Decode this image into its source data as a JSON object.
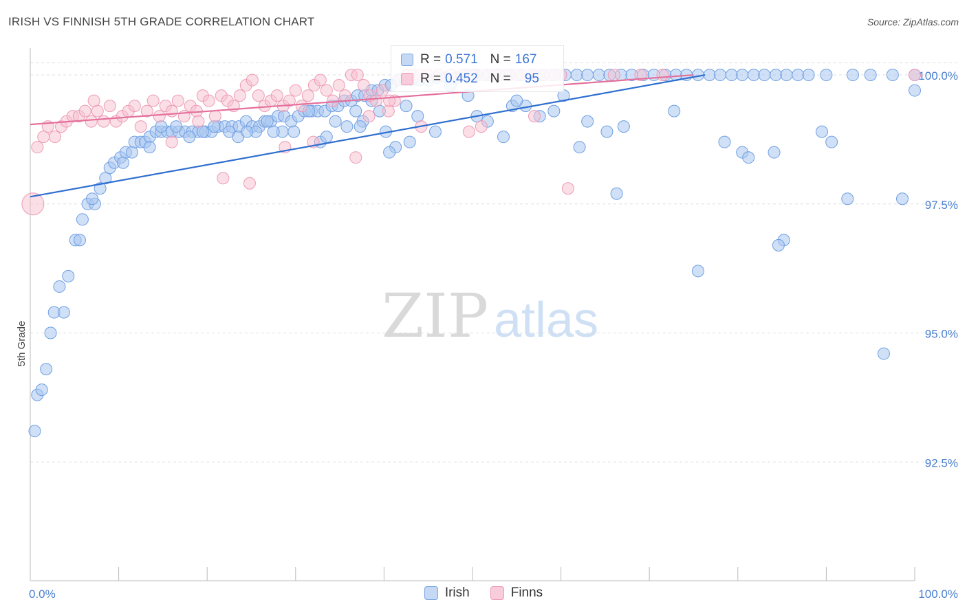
{
  "title": "IRISH VS FINNISH 5TH GRADE CORRELATION CHART",
  "source": "Source: ZipAtlas.com",
  "watermark": {
    "zip": "ZIP",
    "atlas": "atlas"
  },
  "colors": {
    "irish_fill": "#a9c6f0",
    "irish_stroke": "#6f9fe2",
    "irish_line": "#2f6fcf",
    "finns_fill": "#f6bfd0",
    "finns_stroke": "#ee9ab6",
    "finns_line": "#e4709b",
    "tick": "#4a7fd0",
    "grid": "#dddddd"
  },
  "legend": {
    "irish": {
      "r_label": "R =",
      "r_value": "0.571",
      "n_label": "N =",
      "n_value": "167"
    },
    "finns": {
      "r_label": "R =",
      "r_value": "0.452",
      "n_label": "N =",
      "n_value": "95"
    }
  },
  "bottom_legend": [
    "Irish",
    "Finns"
  ],
  "chart_data": {
    "type": "scatter",
    "title": "IRISH VS FINNISH 5TH GRADE CORRELATION CHART",
    "xlabel": "",
    "ylabel": "5th Grade",
    "xlim": [
      0,
      100
    ],
    "ylim": [
      90.2,
      100.4
    ],
    "x_tick_labels": [
      "0.0%",
      "100.0%"
    ],
    "y_ticks": [
      92.5,
      95.0,
      97.5,
      100.0
    ],
    "y_tick_labels": [
      "92.5%",
      "95.0%",
      "97.5%",
      "100.0%"
    ],
    "series": [
      {
        "name": "Irish",
        "trend": {
          "x": [
            0,
            76.3
          ],
          "y": [
            97.64,
            100.0
          ]
        },
        "points": [
          [
            0.5,
            93.1
          ],
          [
            0.8,
            93.8
          ],
          [
            1.3,
            93.9
          ],
          [
            1.8,
            94.3
          ],
          [
            2.3,
            95.0
          ],
          [
            2.7,
            95.4
          ],
          [
            3.8,
            95.4
          ],
          [
            3.3,
            95.9
          ],
          [
            4.3,
            96.1
          ],
          [
            5.1,
            96.8
          ],
          [
            5.6,
            96.8
          ],
          [
            5.9,
            97.2
          ],
          [
            6.5,
            97.5
          ],
          [
            7.3,
            97.5
          ],
          [
            7.0,
            97.6
          ],
          [
            7.9,
            97.8
          ],
          [
            8.5,
            98.0
          ],
          [
            9.0,
            98.2
          ],
          [
            9.5,
            98.3
          ],
          [
            10.2,
            98.4
          ],
          [
            10.5,
            98.3
          ],
          [
            10.8,
            98.5
          ],
          [
            11.5,
            98.5
          ],
          [
            11.8,
            98.7
          ],
          [
            12.5,
            98.7
          ],
          [
            13.0,
            98.7
          ],
          [
            13.5,
            98.8
          ],
          [
            14.2,
            98.9
          ],
          [
            14.8,
            98.9
          ],
          [
            15.5,
            98.9
          ],
          [
            16.0,
            98.9
          ],
          [
            16.8,
            98.9
          ],
          [
            17.5,
            98.9
          ],
          [
            18.3,
            98.9
          ],
          [
            19.0,
            98.9
          ],
          [
            19.8,
            98.9
          ],
          [
            20.5,
            98.9
          ],
          [
            21.2,
            99.0
          ],
          [
            22.0,
            99.0
          ],
          [
            22.8,
            99.0
          ],
          [
            23.6,
            99.0
          ],
          [
            24.4,
            99.1
          ],
          [
            25.1,
            99.0
          ],
          [
            25.9,
            99.0
          ],
          [
            26.5,
            99.1
          ],
          [
            27.2,
            99.1
          ],
          [
            28.0,
            99.2
          ],
          [
            28.7,
            99.2
          ],
          [
            29.5,
            99.1
          ],
          [
            30.3,
            99.2
          ],
          [
            31.0,
            99.3
          ],
          [
            31.8,
            99.3
          ],
          [
            32.5,
            99.3
          ],
          [
            33.3,
            99.3
          ],
          [
            34.1,
            99.4
          ],
          [
            34.8,
            99.4
          ],
          [
            35.5,
            99.5
          ],
          [
            36.3,
            99.5
          ],
          [
            37.0,
            99.6
          ],
          [
            37.8,
            99.6
          ],
          [
            38.6,
            99.7
          ],
          [
            39.3,
            99.7
          ],
          [
            40.1,
            99.8
          ],
          [
            40.8,
            99.8
          ],
          [
            41.6,
            99.9
          ],
          [
            42.4,
            99.9
          ],
          [
            43.1,
            99.9
          ],
          [
            44.0,
            99.9
          ],
          [
            45.0,
            99.9
          ],
          [
            46.0,
            99.95
          ],
          [
            47.0,
            99.95
          ],
          [
            48.2,
            99.95
          ],
          [
            49.3,
            100
          ],
          [
            50.5,
            100
          ],
          [
            51.8,
            100
          ],
          [
            53.0,
            100
          ],
          [
            54.2,
            100
          ],
          [
            55.5,
            100
          ],
          [
            56.8,
            100
          ],
          [
            58.0,
            100
          ],
          [
            59.3,
            100
          ],
          [
            60.5,
            100
          ],
          [
            61.8,
            100
          ],
          [
            63.0,
            100
          ],
          [
            64.3,
            100
          ],
          [
            65.5,
            100
          ],
          [
            66.8,
            100
          ],
          [
            68.0,
            100
          ],
          [
            69.3,
            100
          ],
          [
            70.5,
            100
          ],
          [
            71.8,
            100
          ],
          [
            73.0,
            100
          ],
          [
            74.2,
            100
          ],
          [
            75.5,
            100
          ],
          [
            76.8,
            100
          ],
          [
            78.0,
            100
          ],
          [
            79.3,
            100
          ],
          [
            80.5,
            100
          ],
          [
            81.8,
            100
          ],
          [
            83.0,
            100
          ],
          [
            84.3,
            100
          ],
          [
            85.5,
            100
          ],
          [
            86.8,
            100
          ],
          [
            88.0,
            100
          ],
          [
            90.0,
            100
          ],
          [
            93.0,
            100
          ],
          [
            95.0,
            100
          ],
          [
            97.5,
            100
          ],
          [
            100.0,
            100
          ],
          [
            14.8,
            99.0
          ],
          [
            16.5,
            99.0
          ],
          [
            19.5,
            98.9
          ],
          [
            22.5,
            98.9
          ],
          [
            23.5,
            98.8
          ],
          [
            25.5,
            98.9
          ],
          [
            26.8,
            99.1
          ],
          [
            28.5,
            98.9
          ],
          [
            29.8,
            98.9
          ],
          [
            31.5,
            99.3
          ],
          [
            32.8,
            98.7
          ],
          [
            34.5,
            99.1
          ],
          [
            35.8,
            99.0
          ],
          [
            36.8,
            99.3
          ],
          [
            37.6,
            99.1
          ],
          [
            38.6,
            99.5
          ],
          [
            39.5,
            99.3
          ],
          [
            40.2,
            98.9
          ],
          [
            41.3,
            98.6
          ],
          [
            42.5,
            99.4
          ],
          [
            43.8,
            99.2
          ],
          [
            45.8,
            98.9
          ],
          [
            47.5,
            99.8
          ],
          [
            49.5,
            99.6
          ],
          [
            50.5,
            99.2
          ],
          [
            51.7,
            99.1
          ],
          [
            53.5,
            98.8
          ],
          [
            54.5,
            99.4
          ],
          [
            56.0,
            99.4
          ],
          [
            57.6,
            99.2
          ],
          [
            59.2,
            99.3
          ],
          [
            62.1,
            98.6
          ],
          [
            63.0,
            99.1
          ],
          [
            65.2,
            98.9
          ],
          [
            67.1,
            99.0
          ],
          [
            72.8,
            99.3
          ],
          [
            78.5,
            98.7
          ],
          [
            84.1,
            98.5
          ],
          [
            90.6,
            98.7
          ],
          [
            80.5,
            98.5
          ],
          [
            81.2,
            98.4
          ],
          [
            89.5,
            98.9
          ],
          [
            60.3,
            99.6
          ],
          [
            66.3,
            97.7
          ],
          [
            75.5,
            96.2
          ],
          [
            85.2,
            96.8
          ],
          [
            84.6,
            96.7
          ],
          [
            98.6,
            97.6
          ],
          [
            92.4,
            97.6
          ],
          [
            96.5,
            94.6
          ],
          [
            104.3,
            99.7
          ],
          [
            40.6,
            98.5
          ],
          [
            42.9,
            98.7
          ],
          [
            50.2,
            100
          ],
          [
            55.0,
            99.5
          ],
          [
            20.8,
            99.0
          ],
          [
            24.5,
            98.9
          ],
          [
            27.5,
            98.9
          ],
          [
            18.0,
            98.8
          ],
          [
            13.5,
            98.6
          ],
          [
            33.5,
            98.8
          ],
          [
            37.3,
            99.0
          ]
        ]
      },
      {
        "name": "Finns",
        "trend": {
          "x": [
            0,
            75.0
          ],
          "y": [
            99.04,
            100.0
          ]
        },
        "points": [
          [
            0.3,
            97.5
          ],
          [
            0.8,
            98.6
          ],
          [
            1.5,
            98.8
          ],
          [
            2.0,
            99.0
          ],
          [
            2.8,
            98.8
          ],
          [
            3.5,
            99.0
          ],
          [
            4.1,
            99.1
          ],
          [
            4.8,
            99.2
          ],
          [
            5.5,
            99.2
          ],
          [
            6.2,
            99.3
          ],
          [
            6.9,
            99.1
          ],
          [
            7.6,
            99.3
          ],
          [
            8.3,
            99.1
          ],
          [
            9.0,
            99.4
          ],
          [
            9.7,
            99.1
          ],
          [
            10.4,
            99.2
          ],
          [
            11.1,
            99.3
          ],
          [
            11.8,
            99.4
          ],
          [
            12.5,
            99.0
          ],
          [
            13.2,
            99.3
          ],
          [
            13.9,
            99.5
          ],
          [
            14.6,
            99.2
          ],
          [
            15.3,
            99.4
          ],
          [
            16.0,
            99.3
          ],
          [
            16.7,
            99.5
          ],
          [
            17.4,
            99.2
          ],
          [
            18.1,
            99.4
          ],
          [
            18.8,
            99.3
          ],
          [
            19.5,
            99.6
          ],
          [
            20.2,
            99.5
          ],
          [
            20.9,
            99.2
          ],
          [
            21.6,
            99.6
          ],
          [
            22.3,
            99.5
          ],
          [
            23.0,
            99.4
          ],
          [
            23.7,
            99.6
          ],
          [
            24.4,
            99.8
          ],
          [
            25.1,
            99.9
          ],
          [
            25.8,
            99.6
          ],
          [
            26.5,
            99.4
          ],
          [
            27.2,
            99.5
          ],
          [
            27.9,
            99.6
          ],
          [
            28.6,
            99.4
          ],
          [
            29.3,
            99.5
          ],
          [
            30.0,
            99.7
          ],
          [
            30.7,
            99.4
          ],
          [
            31.4,
            99.6
          ],
          [
            32.1,
            99.8
          ],
          [
            32.8,
            99.9
          ],
          [
            33.5,
            99.7
          ],
          [
            34.2,
            99.5
          ],
          [
            34.9,
            99.8
          ],
          [
            35.6,
            99.6
          ],
          [
            36.3,
            100
          ],
          [
            37.0,
            100
          ],
          [
            37.7,
            99.8
          ],
          [
            38.4,
            99.6
          ],
          [
            39.1,
            99.5
          ],
          [
            39.8,
            99.7
          ],
          [
            40.5,
            99.3
          ],
          [
            41.2,
            99.5
          ],
          [
            41.9,
            99.9
          ],
          [
            42.6,
            100
          ],
          [
            43.3,
            100
          ],
          [
            44.0,
            100
          ],
          [
            45.0,
            100
          ],
          [
            46.2,
            100
          ],
          [
            47.5,
            100
          ],
          [
            48.8,
            100
          ],
          [
            50.0,
            100
          ],
          [
            51.2,
            100
          ],
          [
            52.5,
            100
          ],
          [
            53.8,
            100
          ],
          [
            55.0,
            100
          ],
          [
            56.3,
            100
          ],
          [
            57.5,
            100
          ],
          [
            58.8,
            100
          ],
          [
            60.0,
            100
          ],
          [
            66.0,
            100
          ],
          [
            69.0,
            100
          ],
          [
            71.5,
            100
          ],
          [
            100,
            100
          ],
          [
            16.0,
            98.7
          ],
          [
            19.0,
            99.1
          ],
          [
            21.8,
            98.0
          ],
          [
            24.8,
            97.9
          ],
          [
            28.8,
            98.6
          ],
          [
            32.0,
            98.7
          ],
          [
            36.8,
            98.4
          ],
          [
            38.3,
            99.2
          ],
          [
            40.6,
            99.5
          ],
          [
            44.2,
            99.0
          ],
          [
            49.6,
            98.9
          ],
          [
            51.0,
            99.0
          ],
          [
            57.0,
            99.2
          ],
          [
            60.8,
            97.8
          ],
          [
            7.2,
            99.5
          ]
        ]
      }
    ]
  }
}
